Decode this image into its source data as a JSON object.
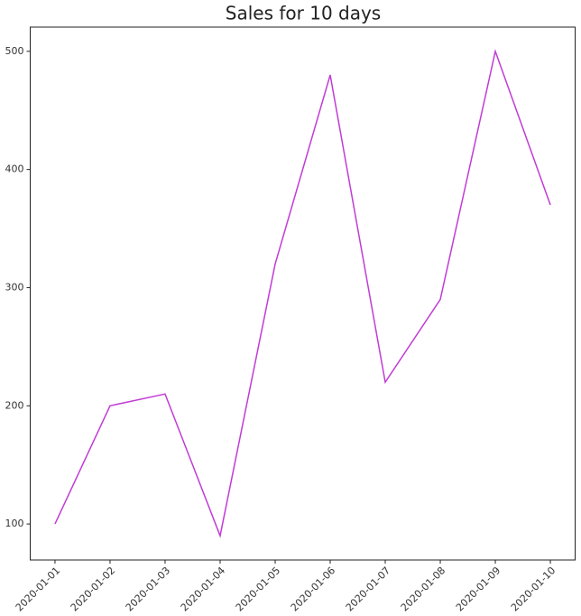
{
  "chart_data": {
    "type": "line",
    "title": "Sales for 10 days",
    "x": [
      "2020-01-01",
      "2020-01-02",
      "2020-01-03",
      "2020-01-04",
      "2020-01-05",
      "2020-01-06",
      "2020-01-07",
      "2020-01-08",
      "2020-01-09",
      "2020-01-10"
    ],
    "series": [
      {
        "color": "#c13cd6",
        "values": [
          100,
          200,
          210,
          90,
          320,
          480,
          220,
          290,
          500,
          370
        ]
      }
    ],
    "ylim": [
      69.5,
      520.5
    ],
    "yticks": [
      100,
      200,
      300,
      400,
      500
    ],
    "grid": false
  }
}
